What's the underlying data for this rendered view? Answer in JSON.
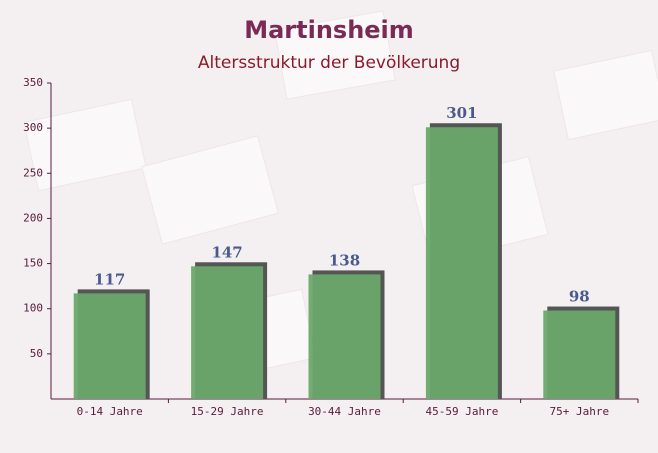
{
  "chart_data": {
    "type": "bar",
    "title": "Martinsheim",
    "subtitle": "Altersstruktur der Bevölkerung",
    "categories": [
      "0-14 Jahre",
      "15-29 Jahre",
      "30-44 Jahre",
      "45-59 Jahre",
      "75+ Jahre"
    ],
    "values": [
      117,
      147,
      138,
      301,
      98
    ],
    "color": "#6aa86a",
    "ylim": [
      0,
      350
    ],
    "yticks": [
      50,
      100,
      150,
      200,
      250,
      300,
      350
    ]
  }
}
